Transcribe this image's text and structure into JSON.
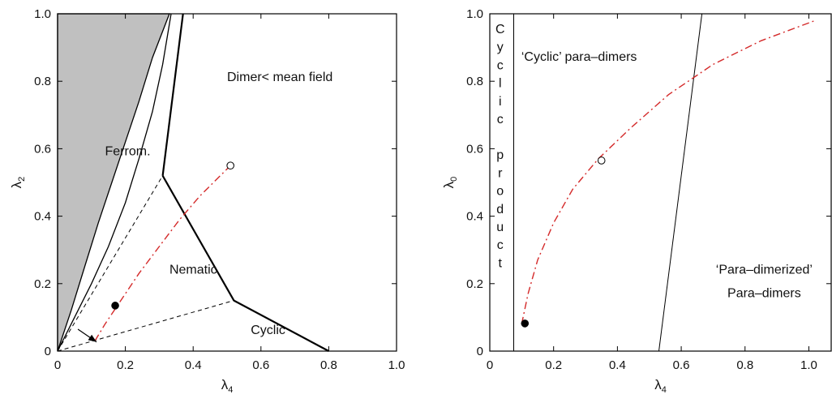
{
  "chart_data": [
    {
      "type": "line",
      "xlabel": "λ",
      "xlabel_sub": "4",
      "ylabel": "λ",
      "ylabel_sub": "2",
      "xlim": [
        0,
        1.0
      ],
      "ylim": [
        0,
        1.0
      ],
      "x_tick_labels": [
        "0",
        "0.2",
        "0.4",
        "0.6",
        "0.8",
        "1.0"
      ],
      "y_tick_labels": [
        "0",
        "0.2",
        "0.4",
        "0.6",
        "0.8",
        "1.0"
      ],
      "grid": false,
      "regions": [
        {
          "label": "Dimer< mean field",
          "x": 0.5,
          "y": 0.8
        },
        {
          "label": "Ferrom.",
          "x": 0.14,
          "y": 0.58
        },
        {
          "label": "Nematic",
          "x": 0.33,
          "y": 0.23
        },
        {
          "label": "Cyclic",
          "x": 0.57,
          "y": 0.05
        }
      ],
      "ferro_boundary": {
        "x": [
          0,
          0.04,
          0.08,
          0.12,
          0.16,
          0.2,
          0.24,
          0.28,
          0.33
        ],
        "y": [
          0,
          0.12,
          0.25,
          0.38,
          0.5,
          0.62,
          0.74,
          0.87,
          1.0
        ]
      },
      "ferro_boundary2": {
        "x": [
          0,
          0.05,
          0.1,
          0.15,
          0.2,
          0.24,
          0.28,
          0.31,
          0.335
        ],
        "y": [
          0,
          0.1,
          0.2,
          0.31,
          0.44,
          0.57,
          0.71,
          0.85,
          1.0
        ]
      },
      "solid_boundaries": [
        {
          "x": [
            0.37,
            0.31
          ],
          "y": [
            1.0,
            0.52
          ]
        },
        {
          "x": [
            0.31,
            0.52
          ],
          "y": [
            0.52,
            0.15
          ]
        },
        {
          "x": [
            0.52,
            0.8
          ],
          "y": [
            0.15,
            0.0
          ]
        }
      ],
      "dashed_boundaries": [
        {
          "x": [
            0,
            0.31
          ],
          "y": [
            0,
            0.52
          ]
        },
        {
          "x": [
            0,
            0.52
          ],
          "y": [
            0,
            0.15
          ]
        }
      ],
      "series": [
        {
          "style": "dash-dot",
          "color": "#d42a2a",
          "x": [
            0.11,
            0.14,
            0.18,
            0.24,
            0.3,
            0.36,
            0.42,
            0.47,
            0.51
          ],
          "y": [
            0.03,
            0.08,
            0.14,
            0.23,
            0.31,
            0.39,
            0.46,
            0.51,
            0.55
          ]
        }
      ],
      "markers": [
        {
          "x": 0.17,
          "y": 0.135,
          "filled": true
        },
        {
          "x": 0.51,
          "y": 0.55,
          "filled": false
        }
      ],
      "arrow": {
        "from": [
          0.06,
          0.065
        ],
        "to": [
          0.115,
          0.027
        ]
      }
    },
    {
      "type": "line",
      "xlabel": "λ",
      "xlabel_sub": "4",
      "ylabel": "λ",
      "ylabel_sub": "0",
      "xlim": [
        0,
        1.07
      ],
      "ylim": [
        0,
        1.0
      ],
      "x_tick_labels": [
        "0",
        "0.2",
        "0.4",
        "0.6",
        "0.8",
        "1.0"
      ],
      "y_tick_labels": [
        "0",
        "0.2",
        "0.4",
        "0.6",
        "0.8",
        "1.0"
      ],
      "grid": false,
      "vertical_text": "Cyclic product",
      "regions": [
        {
          "label": "‘Cyclic’ para–dimers",
          "x": 0.28,
          "y": 0.86
        },
        {
          "label": "‘Para–dimerized’",
          "x": 0.86,
          "y": 0.23
        },
        {
          "label": "Para–dimers",
          "x": 0.86,
          "y": 0.16
        }
      ],
      "solid_boundaries": [
        {
          "x": [
            0.075,
            0.075
          ],
          "y": [
            0,
            1.0
          ]
        },
        {
          "x": [
            0.53,
            0.665
          ],
          "y": [
            0,
            1.0
          ]
        }
      ],
      "series": [
        {
          "style": "dash-dot",
          "color": "#d42a2a",
          "x": [
            0.1,
            0.12,
            0.15,
            0.2,
            0.26,
            0.34,
            0.44,
            0.56,
            0.7,
            0.85,
            1.02
          ],
          "y": [
            0.08,
            0.17,
            0.27,
            0.38,
            0.48,
            0.57,
            0.66,
            0.76,
            0.85,
            0.92,
            0.98
          ]
        }
      ],
      "markers": [
        {
          "x": 0.11,
          "y": 0.082,
          "filled": true
        },
        {
          "x": 0.35,
          "y": 0.565,
          "filled": false
        }
      ]
    }
  ]
}
